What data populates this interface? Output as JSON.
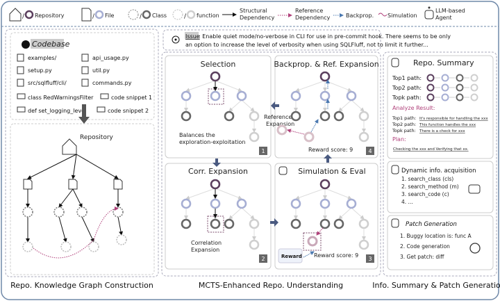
{
  "legend": {
    "repository": "Repository",
    "file": "File",
    "class": "Class",
    "function": "function",
    "structural": [
      "Structural",
      "Dependency"
    ],
    "reference": [
      "Reference",
      "Dependency"
    ],
    "backprop": "Backprop.",
    "simulation": "Simulation",
    "agent": [
      "LLM-based",
      "Agent"
    ]
  },
  "colors": {
    "repository": "#5b3f5e",
    "file": "#a6aed3",
    "class": "#666666",
    "function": "#cfcfcf",
    "reference": "#b0407a",
    "backprop": "#4a78b0",
    "frame": "#6f88a8"
  },
  "codebase": {
    "title": "Codebase",
    "items": [
      {
        "icon": "folder-icon",
        "label": "examples/"
      },
      {
        "icon": "file-icon",
        "label": "api_usage.py"
      },
      {
        "icon": "file-icon",
        "label": "setup.py"
      },
      {
        "icon": "file-icon",
        "label": "util.py"
      },
      {
        "icon": "folder-icon",
        "label": "src/sqlfluff/cli/"
      },
      {
        "icon": "file-icon",
        "label": "commands.py"
      },
      {
        "icon": "code-icon",
        "label": "class RedWarningsFilter"
      },
      {
        "icon": "code-icon",
        "label": "code snippet 1"
      },
      {
        "icon": "code-icon",
        "label": "def set_logging_level"
      },
      {
        "icon": "code-icon",
        "label": "code snippet 2"
      }
    ]
  },
  "graph": {
    "title": "Repository"
  },
  "captions": {
    "left": "Repo. Knowledge Graph Construction",
    "middle": "MCTS-Enhanced Repo. Understanding",
    "right": "Info. Summary & Patch Generation"
  },
  "issue": {
    "label": "Issue",
    "line1": ": Enable quiet mode/no-verbose in CLI for use in pre-commit hook. There seems to be only",
    "line2": "an option to increase the level of verbosity when using SQLFluff, not to limit it further..."
  },
  "mcts": {
    "selection": {
      "title": "Selection",
      "note": [
        "Balances the",
        "exploration-exploitation"
      ],
      "step": "1"
    },
    "corr": {
      "title": "Corr. Expansion",
      "note": [
        "Correlation",
        "Expansion"
      ],
      "step": "2"
    },
    "sim": {
      "title": "Simulation & Eval",
      "reward_label": "Reward",
      "score": "Reward score: 9",
      "step": "3"
    },
    "backprop": {
      "title": "Backprop. & Ref. Expansion",
      "note": [
        "Reference",
        "Expansion"
      ],
      "score": "Reward score: 9",
      "step": "4"
    }
  },
  "summary": {
    "title": "Repo. Summary",
    "paths": [
      "Top1 path:",
      "Top2 path:",
      "Topk path:"
    ],
    "analyze_title": "Analyze Result:",
    "results": [
      {
        "label": "Top1 path:",
        "text": "It's responsible for handling the xxx"
      },
      {
        "label": "Top2 path:",
        "text": "This function handles the xxx"
      },
      {
        "label": "Topk path:",
        "text": "There is a check for xxx"
      }
    ],
    "plan_title": "Plan:",
    "plan": "Checking the xxx and Verifying that xx."
  },
  "dynamic": {
    "title": "Dynamic info. acquisition",
    "items": [
      "1. search_class (cls)",
      "2. search_method (m)",
      "3. search_code (c)",
      "4. ..."
    ]
  },
  "patch": {
    "title": "Patch Generation",
    "items": [
      "1. Buggy location is: func A",
      "2. Code generation",
      "3. Get patch: diff"
    ]
  }
}
